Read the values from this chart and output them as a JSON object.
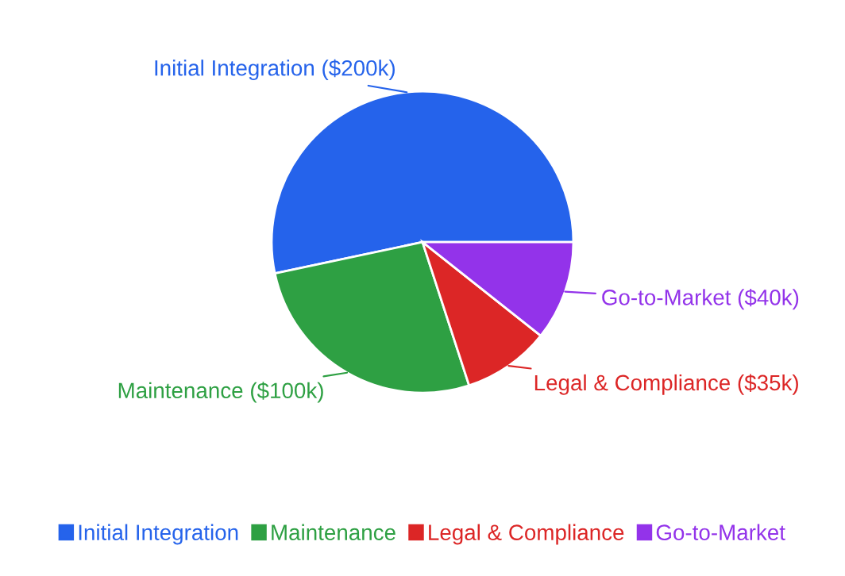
{
  "chart_data": {
    "type": "pie",
    "categories": [
      "Initial Integration",
      "Maintenance",
      "Legal & Compliance",
      "Go-to-Market"
    ],
    "values": [
      200,
      100,
      35,
      40
    ],
    "value_labels": [
      "($200k)",
      "($100k)",
      "($35k)",
      "($40k)"
    ],
    "colors": [
      "#2563eb",
      "#2ea043",
      "#dc2626",
      "#9333ea"
    ],
    "legend": "bottom"
  }
}
